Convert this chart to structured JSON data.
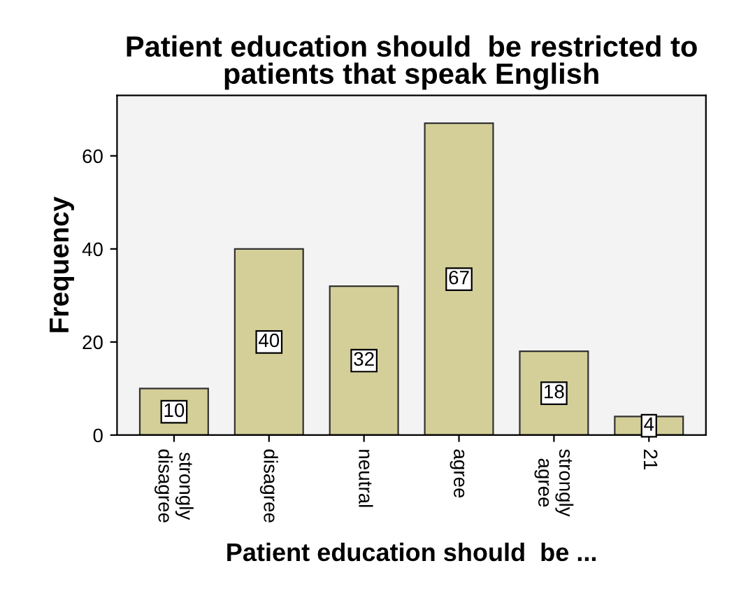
{
  "chart_data": {
    "type": "bar",
    "title": "Patient education should  be restricted to\npatients that speak English",
    "xlabel": "Patient education should  be ...",
    "ylabel": "Frequency",
    "categories": [
      "strongly disagree",
      "disagree",
      "neutral",
      "agree",
      "strongly agree",
      "21"
    ],
    "values": [
      10,
      40,
      32,
      67,
      18,
      4
    ],
    "color": "#d4cf98",
    "ylim": [
      0,
      73
    ],
    "yticks": [
      0,
      20,
      40,
      60
    ],
    "grid": false,
    "data_labels": true
  }
}
